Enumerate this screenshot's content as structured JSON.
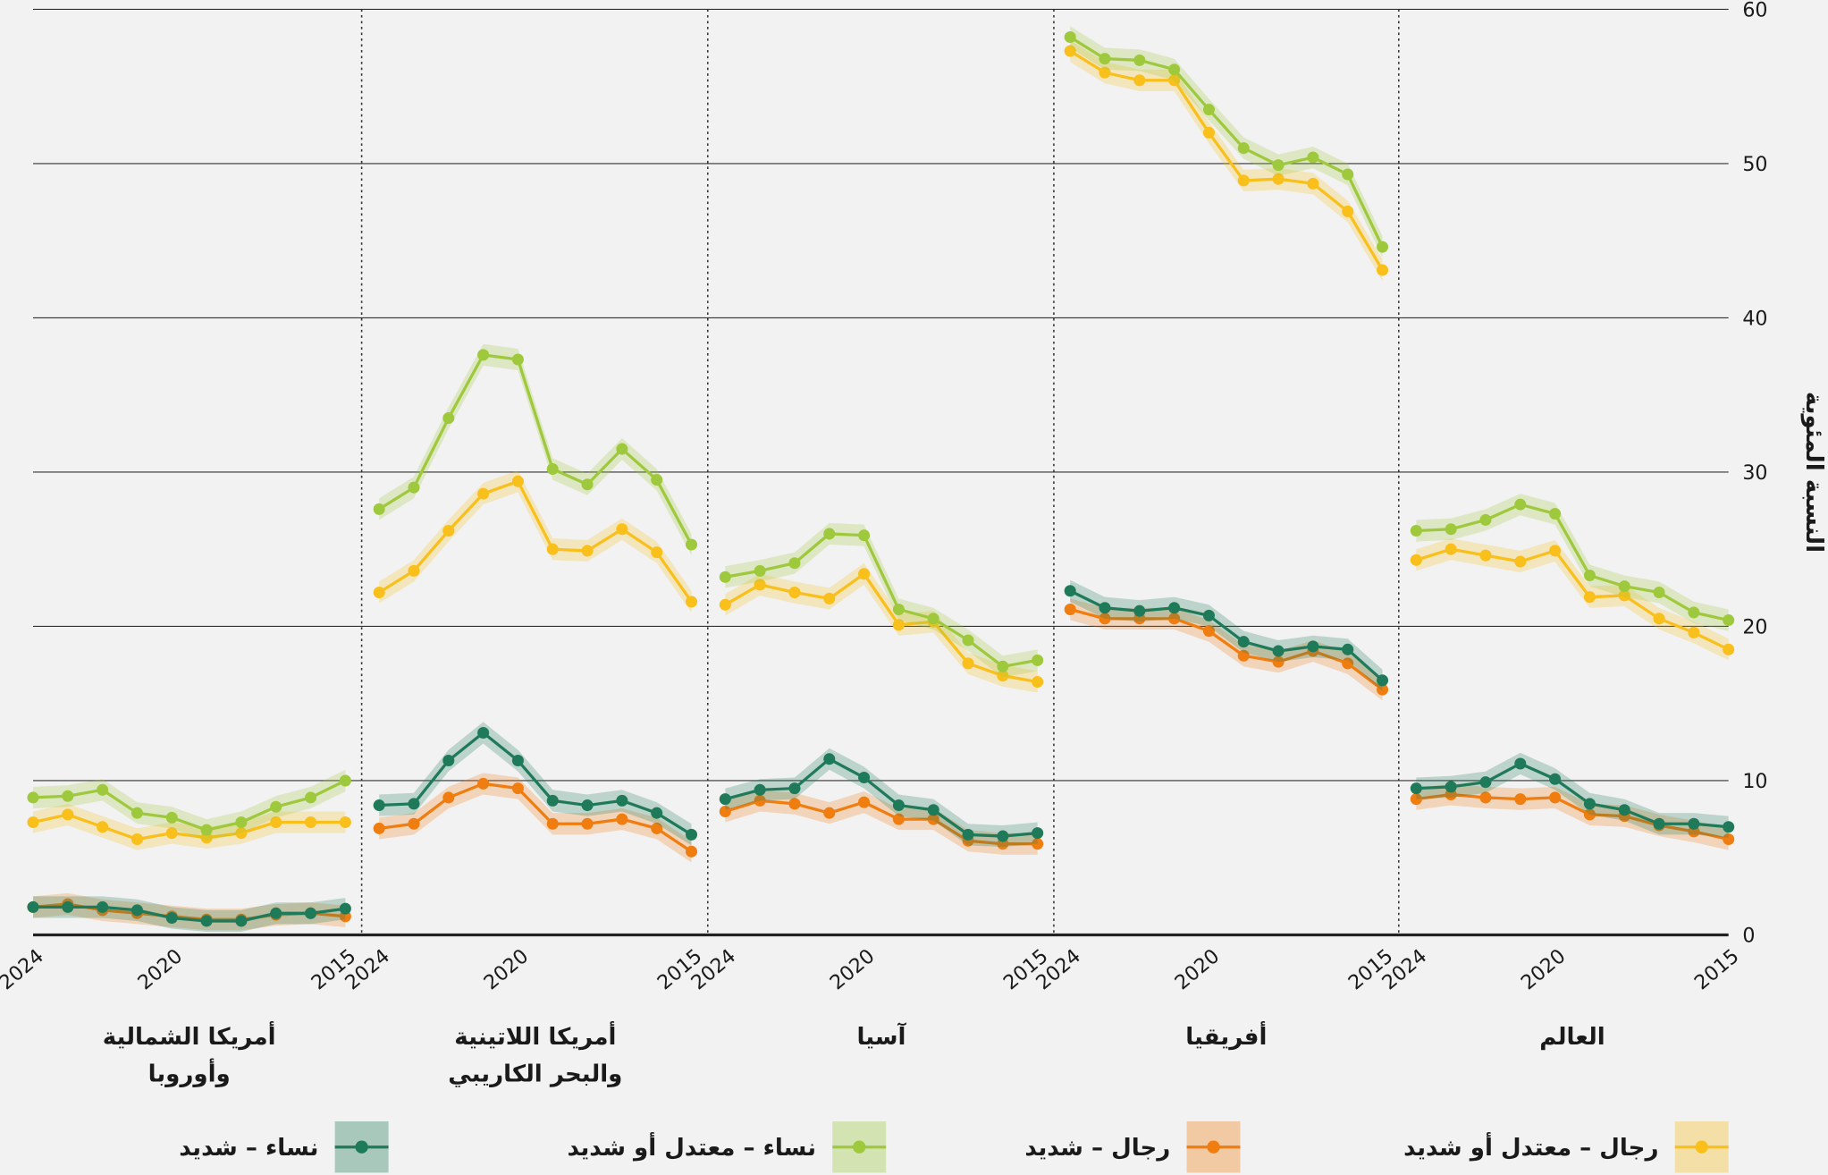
{
  "chart_data": {
    "type": "line",
    "ylabel": "النسبة المئوية",
    "ylim": [
      0,
      60
    ],
    "yticks": [
      "0",
      "10",
      "20",
      "30",
      "40",
      "50",
      "60"
    ],
    "x": [
      2015,
      2016,
      2017,
      2018,
      2019,
      2020,
      2021,
      2022,
      2023,
      2024
    ],
    "xtick_labels": [
      "2015",
      "2020",
      "2024"
    ],
    "grid": true,
    "legend_position": "bottom",
    "series_meta": [
      {
        "key": "mm",
        "name": "رجال – معتدل أو شديد",
        "color": "#f9bf1b"
      },
      {
        "key": "ms",
        "name": "رجال – شديد",
        "color": "#f07d10"
      },
      {
        "key": "wm",
        "name": "نساء – معتدل أو شديد",
        "color": "#9fc93c"
      },
      {
        "key": "ws",
        "name": "نساء – شديد",
        "color": "#1f7a5a"
      }
    ],
    "panels": [
      {
        "title": [
          "العالم"
        ],
        "wm": [
          20.4,
          20.9,
          22.2,
          22.6,
          23.3,
          27.3,
          27.9,
          26.9,
          26.3,
          26.2
        ],
        "mm": [
          18.5,
          19.6,
          20.5,
          22.0,
          21.9,
          24.9,
          24.2,
          24.6,
          25.0,
          24.3
        ],
        "ws": [
          7.0,
          7.2,
          7.2,
          8.1,
          8.5,
          10.1,
          11.1,
          9.9,
          9.6,
          9.5
        ],
        "ms": [
          6.2,
          6.7,
          7.1,
          7.7,
          7.8,
          8.9,
          8.8,
          8.9,
          9.1,
          8.8
        ]
      },
      {
        "title": [
          "أفريقيا"
        ],
        "wm": [
          44.6,
          49.3,
          50.4,
          49.9,
          51.0,
          53.5,
          56.1,
          56.7,
          56.8,
          58.2
        ],
        "mm": [
          43.1,
          46.9,
          48.7,
          49.0,
          48.9,
          52.0,
          55.4,
          55.4,
          55.9,
          57.3
        ],
        "ws": [
          16.5,
          18.5,
          18.7,
          18.4,
          19.0,
          20.7,
          21.2,
          21.0,
          21.2,
          22.3
        ],
        "ms": [
          15.9,
          17.6,
          18.4,
          17.7,
          18.1,
          19.7,
          20.5,
          20.5,
          20.5,
          21.1
        ]
      },
      {
        "title": [
          "آسيا"
        ],
        "wm": [
          17.8,
          17.4,
          19.1,
          20.5,
          21.1,
          25.9,
          26.0,
          24.1,
          23.6,
          23.2
        ],
        "mm": [
          16.4,
          16.8,
          17.6,
          20.3,
          20.1,
          23.4,
          21.8,
          22.2,
          22.7,
          21.4
        ],
        "ws": [
          6.6,
          6.4,
          6.5,
          8.1,
          8.4,
          10.2,
          11.4,
          9.5,
          9.4,
          8.8
        ],
        "ms": [
          5.9,
          5.9,
          6.1,
          7.5,
          7.5,
          8.6,
          7.9,
          8.5,
          8.7,
          8.0
        ]
      },
      {
        "title": [
          "أمريكا اللاتينية",
          "والبحر الكاريبي"
        ],
        "wm": [
          25.3,
          29.5,
          31.5,
          29.2,
          30.2,
          37.3,
          37.6,
          33.5,
          29.0,
          27.6
        ],
        "mm": [
          21.6,
          24.8,
          26.3,
          24.9,
          25.0,
          29.4,
          28.6,
          26.2,
          23.6,
          22.2
        ],
        "ws": [
          6.5,
          7.9,
          8.7,
          8.4,
          8.7,
          11.3,
          13.1,
          11.3,
          8.5,
          8.4
        ],
        "ms": [
          5.4,
          6.9,
          7.5,
          7.2,
          7.2,
          9.5,
          9.8,
          8.9,
          7.2,
          6.9
        ]
      },
      {
        "title": [
          "أمريكا الشمالية",
          "وأوروبا"
        ],
        "wm": [
          10.0,
          8.9,
          8.3,
          7.3,
          6.8,
          7.6,
          7.9,
          9.4,
          9.0,
          8.9
        ],
        "mm": [
          7.3,
          7.3,
          7.3,
          6.6,
          6.3,
          6.6,
          6.2,
          7.0,
          7.8,
          7.3
        ],
        "ws": [
          1.7,
          1.4,
          1.4,
          0.9,
          0.9,
          1.1,
          1.6,
          1.8,
          1.8,
          1.8
        ],
        "ms": [
          1.2,
          1.4,
          1.3,
          1.0,
          1.0,
          1.2,
          1.4,
          1.6,
          2.0,
          1.8
        ]
      }
    ]
  }
}
